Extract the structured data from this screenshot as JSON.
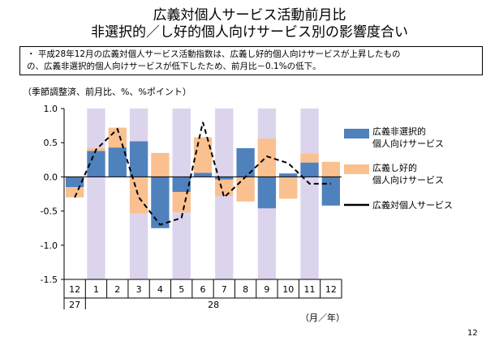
{
  "page": {
    "title_line1": "広義対個人サービス活動前月比",
    "title_line2": "非選択的／し好的個人向けサービス別の影響度合い",
    "note_line1": "・ 平成28年12月の広義対個人サービス活動指数は、広義し好的個人向けサービスが上昇したもの",
    "note_line2": "の、広義非選択的個人向けサービスが低下したため、前月比－0.1%の低下。",
    "unit_label": "（季節調整済、前月比、%、%ポイント）",
    "axis_unit": "（月／年）",
    "page_number": "12"
  },
  "legend": {
    "series1_line1": "広義非選択的",
    "series1_line2": "個人向けサービス",
    "series2_line1": "広義し好的",
    "series2_line2": "個人向けサービス",
    "series3": "広義対個人サービス"
  },
  "colors": {
    "nonselective": "#4f81bd",
    "discretionary": "#fac090",
    "total": "#000000",
    "shading": "#dcd4ec"
  },
  "chart_data": {
    "type": "bar",
    "stacked": true,
    "categories": [
      "12",
      "1",
      "2",
      "3",
      "4",
      "5",
      "6",
      "7",
      "8",
      "9",
      "10",
      "11",
      "12"
    ],
    "year_labels": [
      {
        "label": "27",
        "from_index": 0
      },
      {
        "label": "28",
        "from_index": 1
      }
    ],
    "series": [
      {
        "name": "広義非選択的個人向けサービス",
        "type": "bar",
        "values": [
          -0.15,
          0.38,
          0.43,
          0.52,
          -0.75,
          -0.22,
          0.06,
          -0.04,
          0.42,
          -0.46,
          0.05,
          0.21,
          -0.42
        ]
      },
      {
        "name": "広義し好的個人向けサービス",
        "type": "bar",
        "values": [
          -0.15,
          0.04,
          0.29,
          -0.53,
          0.35,
          -0.3,
          0.52,
          -0.24,
          -0.36,
          0.56,
          -0.32,
          0.13,
          0.22
        ]
      },
      {
        "name": "広義対個人サービス",
        "type": "line",
        "values": [
          -0.3,
          0.4,
          0.7,
          -0.3,
          -0.7,
          -0.6,
          0.8,
          -0.3,
          0.0,
          0.3,
          0.2,
          -0.1,
          -0.1
        ]
      }
    ],
    "shaded_categories": [
      1,
      3,
      5,
      7,
      9,
      11
    ],
    "ylim": [
      -1.5,
      1.0
    ],
    "yticks": [
      1.0,
      0.5,
      0.0,
      -0.5,
      -1.0,
      -1.5
    ],
    "ytick_labels": [
      "1.0",
      "0.5",
      "0.0",
      "-0.5",
      "-1.0",
      "-1.5"
    ],
    "legend_position": "right",
    "grid": false
  }
}
